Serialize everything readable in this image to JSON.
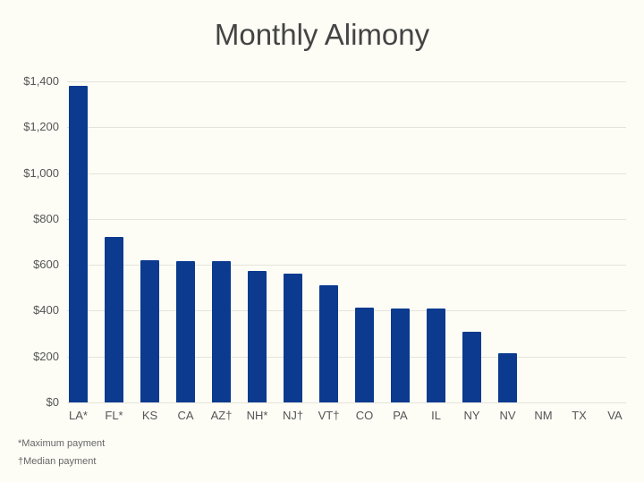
{
  "title": "Monthly Alimony",
  "chart_data": {
    "type": "bar",
    "title": "Monthly Alimony",
    "xlabel": "",
    "ylabel": "",
    "ylim": [
      0,
      1400
    ],
    "grid": true,
    "yticks": [
      "$0",
      "$200",
      "$400",
      "$600",
      "$800",
      "$1,000",
      "$1,200",
      "$1,400"
    ],
    "categories": [
      "LA*",
      "FL*",
      "KS",
      "CA",
      "AZ†",
      "NH*",
      "NJ†",
      "VT†",
      "CO",
      "PA",
      "IL",
      "NY",
      "NV",
      "NM",
      "TX",
      "VA"
    ],
    "values": [
      1380,
      720,
      620,
      615,
      615,
      573,
      560,
      510,
      413,
      410,
      408,
      308,
      215,
      0,
      0,
      0
    ],
    "bar_color": "#0b3a8f",
    "footnotes": [
      "*Maximum payment",
      "†Median payment"
    ]
  },
  "footnotes": [
    "*Maximum payment",
    "†Median payment"
  ]
}
